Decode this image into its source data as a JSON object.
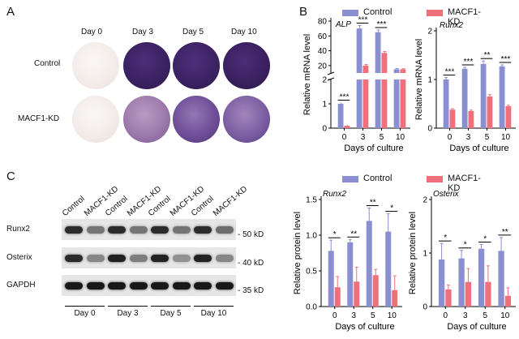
{
  "panels": {
    "a": "A",
    "b": "B",
    "c": "C"
  },
  "panel_a": {
    "days": [
      "Day 0",
      "Day 3",
      "Day 5",
      "Day 10"
    ],
    "rows": [
      "Control",
      "MACF1-KD"
    ]
  },
  "legend": {
    "control": "Control",
    "kd": "MACF1-KD"
  },
  "colors": {
    "control": "#8a8fd1",
    "kd": "#ef6f7b"
  },
  "chart_data": [
    {
      "type": "bar",
      "title": "ALP",
      "ylabel": "Relative mRNA level",
      "xlabel": "Days of culture",
      "categories": [
        "0",
        "3",
        "5",
        "10"
      ],
      "broken_axis": true,
      "upper_ticks": [
        "20",
        "40",
        "60",
        "80"
      ],
      "lower_ticks": [
        "0",
        "1",
        "2"
      ],
      "series": [
        {
          "name": "Control",
          "values": [
            1.0,
            70,
            65,
            15
          ],
          "errors": [
            0.05,
            4,
            3,
            1
          ]
        },
        {
          "name": "MACF1-KD",
          "values": [
            0.1,
            20,
            37,
            15
          ],
          "errors": [
            0.02,
            1.5,
            2,
            0.8
          ]
        }
      ],
      "sig": [
        "***",
        "***",
        "***",
        ""
      ]
    },
    {
      "type": "bar",
      "title": "Runx2",
      "ylabel": "Relative mRNA level",
      "xlabel": "Days of culture",
      "categories": [
        "0",
        "3",
        "5",
        "10"
      ],
      "ylim": [
        0,
        2
      ],
      "ticks": [
        "0",
        "1",
        "2"
      ],
      "series": [
        {
          "name": "Control",
          "values": [
            1.0,
            1.22,
            1.32,
            1.27
          ],
          "errors": [
            0.04,
            0.03,
            0.06,
            0.03
          ]
        },
        {
          "name": "MACF1-KD",
          "values": [
            0.38,
            0.35,
            0.65,
            0.45
          ],
          "errors": [
            0.02,
            0.02,
            0.04,
            0.02
          ]
        }
      ],
      "sig": [
        "***",
        "***",
        "**",
        "***"
      ]
    },
    {
      "type": "bar",
      "title": "Runx2",
      "ylabel": "Relative protein level",
      "xlabel": "Days of culture",
      "categories": [
        "0",
        "3",
        "5",
        "10"
      ],
      "ylim": [
        0,
        1.5
      ],
      "ticks": [
        "0.0",
        "0.5",
        "1.0",
        "1.5"
      ],
      "series": [
        {
          "name": "Control",
          "values": [
            0.78,
            0.9,
            1.2,
            1.05
          ],
          "errors": [
            0.15,
            0.04,
            0.18,
            0.25
          ]
        },
        {
          "name": "MACF1-KD",
          "values": [
            0.27,
            0.35,
            0.44,
            0.23
          ],
          "errors": [
            0.15,
            0.2,
            0.08,
            0.2
          ]
        }
      ],
      "sig": [
        "*",
        "**",
        "**",
        "*"
      ]
    },
    {
      "type": "bar",
      "title": "Osterix",
      "ylabel": "Relative protein level",
      "xlabel": "Days of culture",
      "categories": [
        "0",
        "3",
        "5",
        "10"
      ],
      "ylim": [
        0,
        2
      ],
      "ticks": [
        "0",
        "1",
        "2"
      ],
      "series": [
        {
          "name": "Control",
          "values": [
            0.88,
            0.9,
            1.08,
            1.04
          ],
          "errors": [
            0.3,
            0.15,
            0.08,
            0.25
          ]
        },
        {
          "name": "MACF1-KD",
          "values": [
            0.32,
            0.46,
            0.46,
            0.2
          ],
          "errors": [
            0.08,
            0.25,
            0.3,
            0.15
          ]
        }
      ],
      "sig": [
        "*",
        "*",
        "*",
        "**"
      ]
    }
  ],
  "western": {
    "lanes": [
      "Control",
      "MACF1-KD",
      "Control",
      "MACF1-KD",
      "Control",
      "MACF1-KD",
      "Control",
      "MACF1-KD"
    ],
    "proteins": [
      "Runx2",
      "Osterix",
      "GAPDH"
    ],
    "markers": [
      "- 50 kD",
      "- 40 kD",
      "- 35 kD"
    ],
    "days": [
      "Day 0",
      "Day 3",
      "Day 5",
      "Day 10"
    ],
    "band_levels": {
      "Runx2": [
        0.85,
        0.45,
        0.85,
        0.45,
        0.85,
        0.45,
        0.85,
        0.5
      ],
      "Osterix": [
        0.85,
        0.35,
        0.9,
        0.4,
        0.9,
        0.3,
        0.9,
        0.35
      ],
      "GAPDH": [
        0.95,
        0.95,
        0.95,
        0.95,
        0.95,
        0.95,
        0.95,
        0.95
      ]
    }
  }
}
